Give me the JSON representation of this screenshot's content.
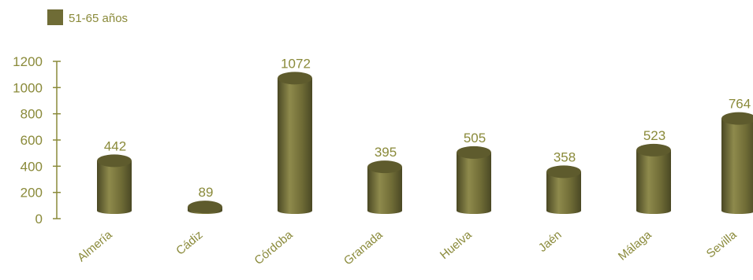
{
  "colors": {
    "bar": "#6f6c36",
    "bar_dark": "#4a4824",
    "bar_light": "#8e8a4c",
    "bar_top": "#5e5b2d",
    "text": "#8a8a3a",
    "axis": "#8a8a3a"
  },
  "chart_data": {
    "type": "bar",
    "title": "",
    "xlabel": "",
    "ylabel": "",
    "legend": {
      "position": "top-left"
    },
    "grid": false,
    "ylim": [
      0,
      1200
    ],
    "yticks": [
      0,
      200,
      400,
      600,
      800,
      1000,
      1200
    ],
    "categories": [
      "Almería",
      "Cádiz",
      "Córdoba",
      "Granada",
      "Huelva",
      "Jaén",
      "Málaga",
      "Sevilla"
    ],
    "series": [
      {
        "name": "51-65 años",
        "values": [
          442,
          89,
          1072,
          395,
          505,
          358,
          523,
          764
        ]
      }
    ]
  }
}
